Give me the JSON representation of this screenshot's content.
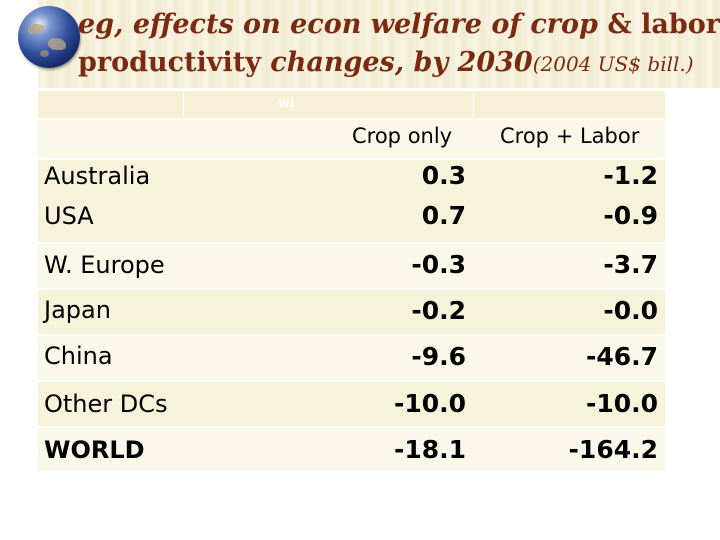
{
  "slide": {
    "title": {
      "line1_prefix": "eg, effects on econ welfare of crop ",
      "line1_amp": "&",
      "line1_suffix": " labor",
      "line2_prefix": "productivity",
      "line2_mid": " changes, by 2030",
      "line2_small": "(2004 US$ bill.)"
    },
    "header_fragment": "wi",
    "columns": [
      "Crop only",
      "Crop + Labor"
    ],
    "rows": [
      {
        "region": "Australia",
        "crop_only": "0.3",
        "crop_labor": "-1.2"
      },
      {
        "region": "USA",
        "crop_only": "0.7",
        "crop_labor": "-0.9"
      },
      {
        "region": "W. Europe",
        "crop_only": "-0.3",
        "crop_labor": "-3.7"
      },
      {
        "region": "Japan",
        "crop_only": "-0.2",
        "crop_labor": "-0.0"
      },
      {
        "region": "China",
        "crop_only": "-9.6",
        "crop_labor": "-46.7"
      },
      {
        "region": "Other DCs",
        "crop_only": "-10.0",
        "crop_labor": "-10.0"
      },
      {
        "region": "WORLD",
        "crop_only": "-18.1",
        "crop_labor": "-164.2"
      }
    ],
    "icons": {
      "globe": "globe-icon"
    }
  }
}
